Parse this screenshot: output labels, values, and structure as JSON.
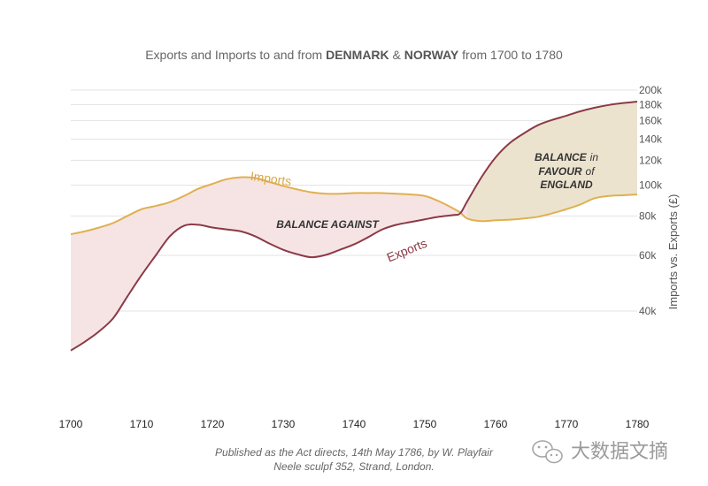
{
  "chart_data": {
    "type": "area",
    "title": {
      "prefix": "Exports and Imports to and from ",
      "country1": "DENMARK",
      "amp": " & ",
      "country2": "NORWAY",
      "suffix": " from 1700 to 1780"
    },
    "xlabel": "",
    "ylabel": "Imports vs. Exports (£)",
    "xlim": [
      1700,
      1780
    ],
    "ylim": [
      25000,
      200000
    ],
    "y_scale": "log",
    "x_ticks": [
      1700,
      1710,
      1720,
      1730,
      1740,
      1750,
      1760,
      1770,
      1780
    ],
    "y_ticks": [
      {
        "value": 40000,
        "label": "40k"
      },
      {
        "value": 60000,
        "label": "60k"
      },
      {
        "value": 80000,
        "label": "80k"
      },
      {
        "value": 100000,
        "label": "100k"
      },
      {
        "value": 120000,
        "label": "120k"
      },
      {
        "value": 140000,
        "label": "140k"
      },
      {
        "value": 160000,
        "label": "160k"
      },
      {
        "value": 180000,
        "label": "180k"
      },
      {
        "value": 200000,
        "label": "200k"
      }
    ],
    "series": [
      {
        "name": "Imports",
        "color": "#e0b050",
        "x": [
          1700,
          1702,
          1704,
          1706,
          1708,
          1710,
          1712,
          1714,
          1716,
          1718,
          1720,
          1722,
          1724,
          1726,
          1728,
          1730,
          1732,
          1734,
          1736,
          1738,
          1740,
          1742,
          1744,
          1746,
          1748,
          1750,
          1752,
          1754,
          1755,
          1756,
          1758,
          1760,
          1762,
          1764,
          1766,
          1768,
          1770,
          1772,
          1774,
          1776,
          1778,
          1780
        ],
        "values": [
          70000,
          71500,
          73500,
          76000,
          80000,
          84000,
          86000,
          88500,
          92500,
          97500,
          101000,
          104500,
          106000,
          105500,
          102500,
          99500,
          97000,
          95000,
          94000,
          94000,
          94500,
          94500,
          94500,
          94000,
          93500,
          92500,
          89000,
          84500,
          82000,
          78500,
          77000,
          77500,
          77800,
          78500,
          79500,
          81500,
          84000,
          87000,
          91000,
          92500,
          93000,
          93500
        ]
      },
      {
        "name": "Exports",
        "color": "#8b3a46",
        "x": [
          1700,
          1702,
          1704,
          1706,
          1708,
          1710,
          1712,
          1714,
          1716,
          1718,
          1720,
          1722,
          1724,
          1726,
          1728,
          1730,
          1732,
          1734,
          1736,
          1738,
          1740,
          1742,
          1744,
          1746,
          1748,
          1750,
          1752,
          1754,
          1755,
          1756,
          1758,
          1760,
          1762,
          1764,
          1766,
          1768,
          1770,
          1772,
          1774,
          1776,
          1778,
          1780
        ],
        "values": [
          30000,
          32000,
          34500,
          38000,
          44500,
          52000,
          60000,
          69000,
          74500,
          75000,
          73500,
          72500,
          71500,
          69000,
          65500,
          62500,
          60500,
          59200,
          60200,
          62500,
          65000,
          68500,
          72500,
          75000,
          76500,
          78000,
          79500,
          80500,
          81500,
          89000,
          106000,
          122500,
          136000,
          146000,
          155000,
          161000,
          166000,
          171500,
          176000,
          179500,
          182000,
          184000
        ]
      }
    ],
    "annotations": {
      "imports_label": "Imports",
      "exports_label": "Exports",
      "balance_against": "BALANCE AGAINST",
      "balance_in": "BALANCE",
      "in_word": "in",
      "favour": "FAVOUR",
      "of_word": "of",
      "england": "ENGLAND"
    },
    "fills": {
      "against": "#f6e4e4",
      "favour": "#ece3cf"
    }
  },
  "footer": {
    "line1": "Published as the Act directs, 14th May 1786, by W. Playfair",
    "line2": "Neele sculpf 352, Strand, London."
  },
  "watermark": {
    "text": "大数据文摘",
    "icon": "wechat-icon"
  }
}
